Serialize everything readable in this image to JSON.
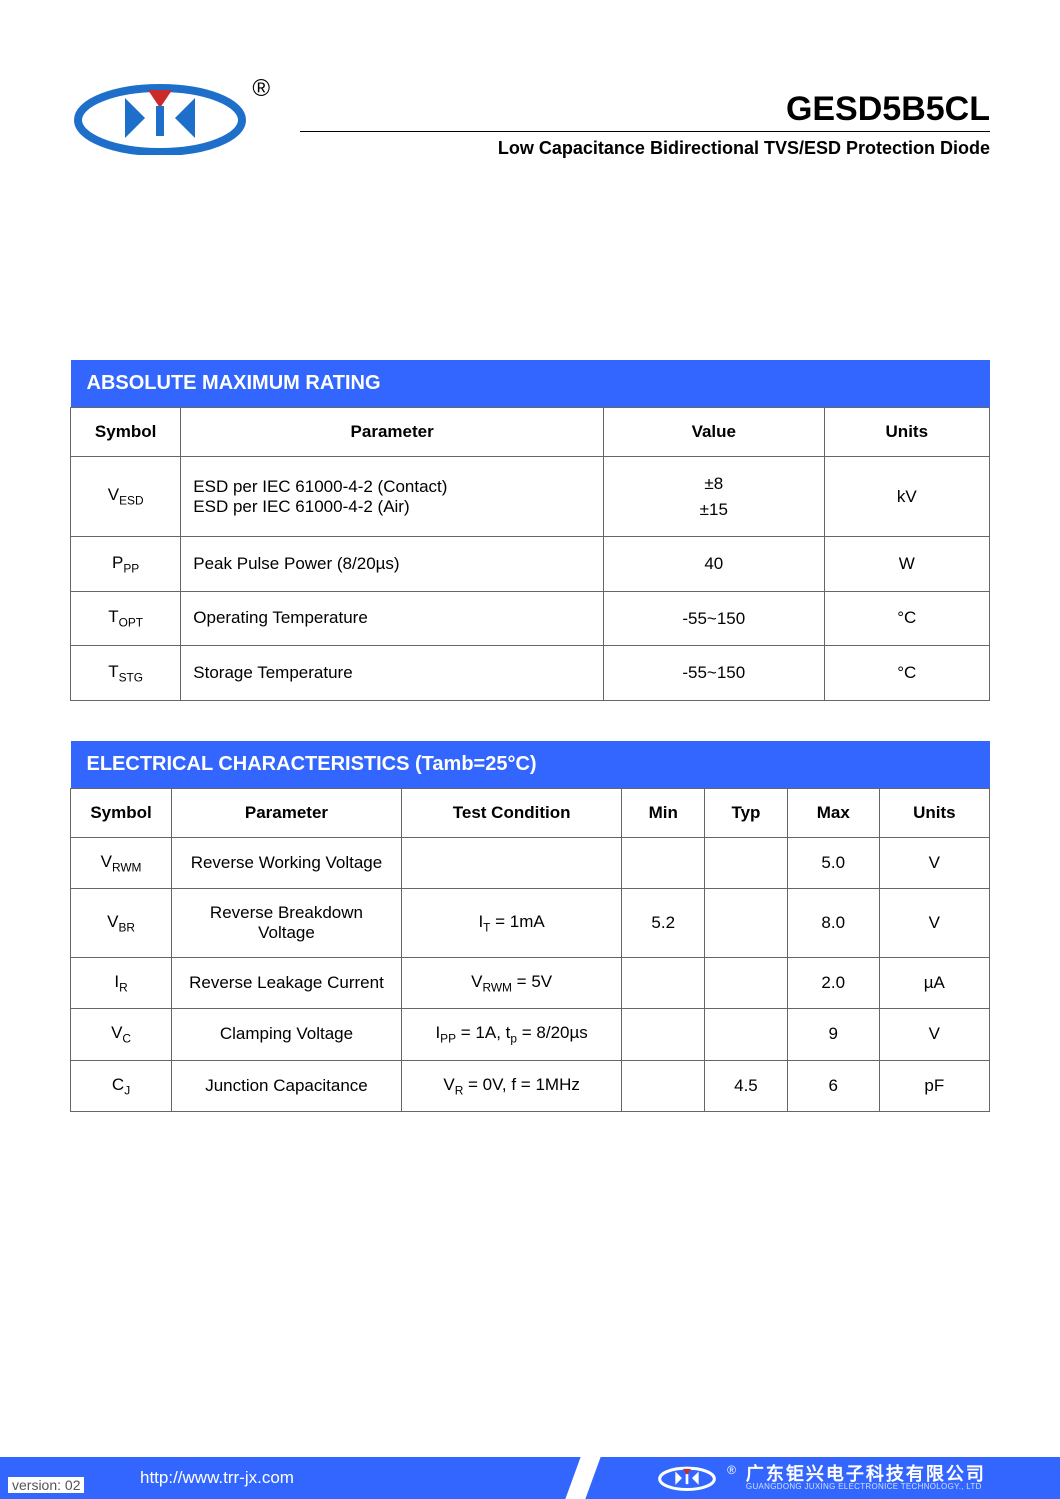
{
  "header": {
    "part_number": "GESD5B5CL",
    "subtitle": "Low Capacitance Bidirectional TVS/ESD Protection Diode",
    "reg_mark": "®",
    "logo_colors": {
      "main": "#1e6fc9",
      "accent": "#c92a2a"
    }
  },
  "table1": {
    "title": "ABSOLUTE MAXIMUM RATING",
    "columns": [
      "Symbol",
      "Parameter",
      "Value",
      "Units"
    ],
    "rows": [
      {
        "symbol_html": "V<sub>ESD</sub>",
        "param_html": "ESD per IEC 61000-4-2 (Contact)<br>ESD per IEC 61000-4-2 (Air)",
        "value_html": "±8<br>±15",
        "units": "kV"
      },
      {
        "symbol_html": "P<sub>PP</sub>",
        "param_html": "Peak Pulse Power (8/20µs)",
        "value_html": "40",
        "units": "W"
      },
      {
        "symbol_html": "T<sub>OPT</sub>",
        "param_html": "Operating Temperature",
        "value_html": "-55~150",
        "units": "°C"
      },
      {
        "symbol_html": "T<sub>STG</sub>",
        "param_html": "Storage Temperature",
        "value_html": "-55~150",
        "units": "°C"
      }
    ],
    "col_widths": [
      "12%",
      "46%",
      "24%",
      "18%"
    ]
  },
  "table2": {
    "title": "ELECTRICAL CHARACTERISTICS (Tamb=25°C)",
    "columns": [
      "Symbol",
      "Parameter",
      "Test Condition",
      "Min",
      "Typ",
      "Max",
      "Units"
    ],
    "rows": [
      {
        "symbol_html": "V<sub>RWM</sub>",
        "param": "Reverse Working Voltage",
        "cond_html": "",
        "min": "",
        "typ": "",
        "max": "5.0",
        "units": "V"
      },
      {
        "symbol_html": "V<sub>BR</sub>",
        "param": "Reverse Breakdown Voltage",
        "cond_html": "I<sub>T</sub> = 1mA",
        "min": "5.2",
        "typ": "",
        "max": "8.0",
        "units": "V"
      },
      {
        "symbol_html": "I<sub>R</sub>",
        "param": "Reverse Leakage Current",
        "cond_html": "V<sub>RWM</sub> = 5V",
        "min": "",
        "typ": "",
        "max": "2.0",
        "units": "µA"
      },
      {
        "symbol_html": "V<sub>C</sub>",
        "param": "Clamping Voltage",
        "cond_html": "I<sub>PP</sub> = 1A, t<sub>p</sub> = 8/20µs",
        "min": "",
        "typ": "",
        "max": "9",
        "units": "V"
      },
      {
        "symbol_html": "C<sub>J</sub>",
        "param": "Junction Capacitance",
        "cond_html": "V<sub>R</sub> = 0V, f = 1MHz",
        "min": "",
        "typ": "4.5",
        "max": "6",
        "units": "pF"
      }
    ],
    "col_widths": [
      "11%",
      "25%",
      "24%",
      "9%",
      "9%",
      "10%",
      "12%"
    ]
  },
  "footer": {
    "url": "http://www.trr-jx.com",
    "company_cn": "广东钜兴电子科技有限公司",
    "company_en": "GUANGDONG JUXING ELECTRONICE TECHNOLOGY., LTD",
    "version": "version: 02"
  },
  "styles": {
    "header_bg": "#3366ff",
    "border_color": "#666666",
    "body_font": "Arial"
  }
}
